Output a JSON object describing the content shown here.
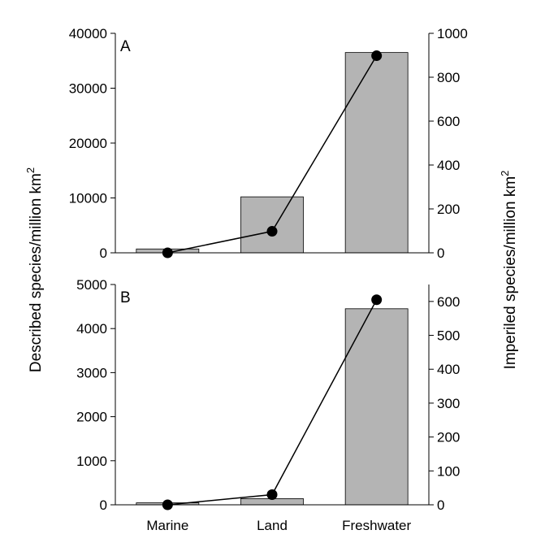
{
  "chart_data": {
    "type": "bar",
    "categories": [
      "Marine",
      "Land",
      "Freshwater"
    ],
    "ylabel_left": "Described species/million km",
    "ylabel_left_sup": "2",
    "ylabel_right": "Imperiled species/million km",
    "ylabel_right_sup": "2",
    "panels": [
      {
        "label": "A",
        "left_axis": {
          "ylim": [
            0,
            40000
          ],
          "ticks": [
            0,
            10000,
            20000,
            30000,
            40000
          ]
        },
        "right_axis": {
          "ylim": [
            0,
            1000
          ],
          "ticks": [
            0,
            200,
            400,
            600,
            800,
            1000
          ]
        },
        "bars": {
          "axis": "left",
          "values": [
            700,
            10200,
            36500
          ],
          "color": "#b4b4b4"
        },
        "line": {
          "axis": "right",
          "values": [
            0,
            98,
            898
          ],
          "color": "#000000"
        }
      },
      {
        "label": "B",
        "left_axis": {
          "ylim": [
            0,
            5000
          ],
          "ticks": [
            0,
            1000,
            2000,
            3000,
            4000,
            5000
          ]
        },
        "right_axis": {
          "ylim": [
            0,
            650
          ],
          "ticks": [
            0,
            100,
            200,
            300,
            400,
            500,
            600
          ]
        },
        "bars": {
          "axis": "left",
          "values": [
            45,
            140,
            4450
          ],
          "color": "#b4b4b4"
        },
        "line": {
          "axis": "right",
          "values": [
            0,
            30,
            605
          ],
          "color": "#000000"
        }
      }
    ]
  }
}
